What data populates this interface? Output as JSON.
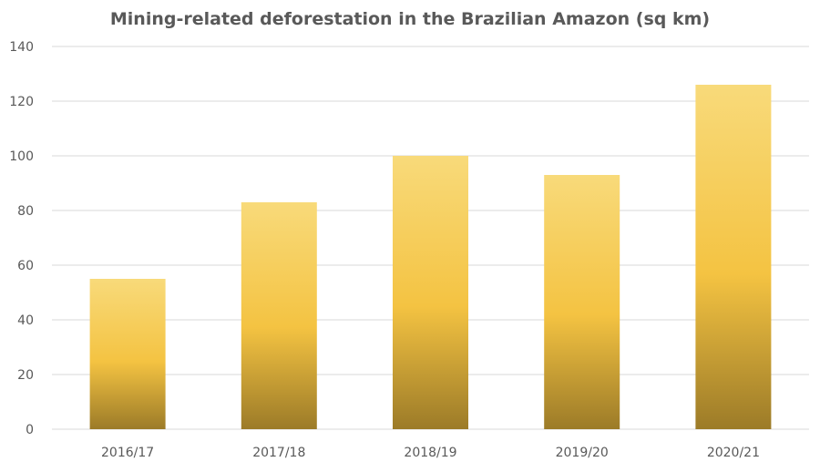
{
  "chart_data": {
    "type": "bar",
    "title": "Mining-related deforestation in the Brazilian Amazon (sq km)",
    "categories": [
      "2016/17",
      "2017/18",
      "2018/19",
      "2019/20",
      "2020/21"
    ],
    "values": [
      55,
      83,
      100,
      93,
      126
    ],
    "xlabel": "",
    "ylabel": "",
    "ylim": [
      0,
      140
    ],
    "yticks": [
      0,
      20,
      40,
      60,
      80,
      100,
      120,
      140
    ],
    "grid": true,
    "legend": "none",
    "colors": {
      "bar_top": "#f8da7a",
      "bar_mid": "#f4c342",
      "bar_bottom": "#9c7b28",
      "grid": "#d9d9d9"
    }
  }
}
